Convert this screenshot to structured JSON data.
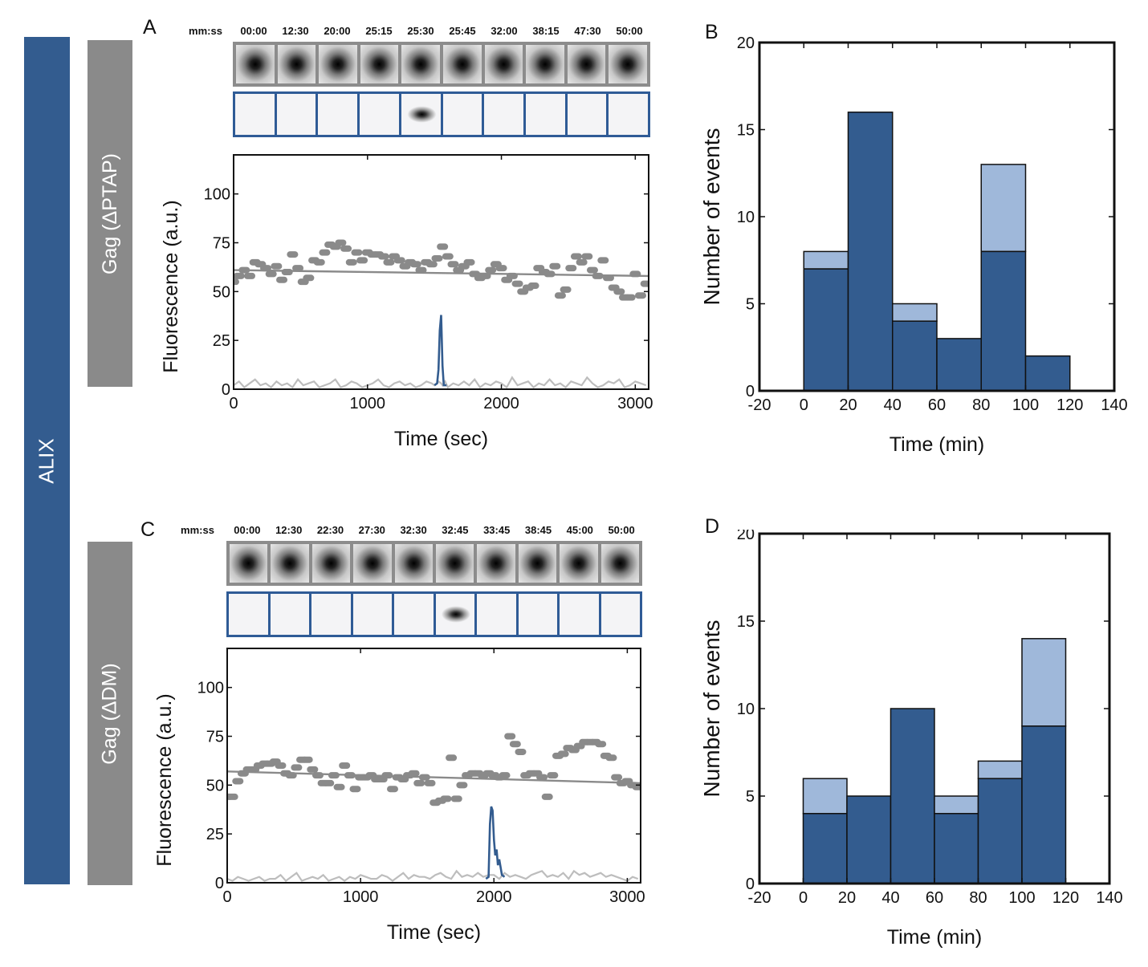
{
  "side_labels": {
    "alix": "ALIX",
    "gag_a": "Gag (ΔPTAP)",
    "gag_c": "Gag (ΔDM)"
  },
  "panel_letters": {
    "a": "A",
    "b": "B",
    "c": "C",
    "d": "D"
  },
  "colors": {
    "dark_blue": "#335c8f",
    "light_blue": "#9fb8da",
    "gray": "#8a8a8a",
    "trace_gray": "#bdbdbd"
  },
  "filmstrip_a": {
    "unit_label": "mm:ss",
    "times": [
      "00:00",
      "12:30",
      "20:00",
      "25:15",
      "25:30",
      "25:45",
      "32:00",
      "38:15",
      "47:30",
      "50:00"
    ],
    "alix_signal_frame": "25:30"
  },
  "filmstrip_c": {
    "unit_label": "mm:ss",
    "times": [
      "00:00",
      "12:30",
      "22:30",
      "27:30",
      "32:30",
      "32:45",
      "33:45",
      "38:45",
      "45:00",
      "50:00"
    ],
    "alix_signal_frame": "32:45"
  },
  "chart_data": [
    {
      "panel": "A",
      "type": "scatter",
      "xlabel": "Time (sec)",
      "ylabel": "Fluorescence (a.u.)",
      "xlim": [
        0,
        3100
      ],
      "ylim": [
        0,
        120
      ],
      "xticks": [
        0,
        1000,
        2000,
        3000
      ],
      "yticks": [
        0,
        25,
        50,
        75,
        100
      ],
      "series": [
        {
          "name": "Gag",
          "style": "dots",
          "color": "#8a8a8a",
          "x": [
            0,
            40,
            80,
            120,
            160,
            200,
            240,
            280,
            320,
            360,
            400,
            440,
            480,
            520,
            560,
            600,
            640,
            680,
            720,
            760,
            800,
            840,
            880,
            920,
            960,
            1000,
            1040,
            1080,
            1120,
            1160,
            1200,
            1240,
            1280,
            1320,
            1360,
            1400,
            1440,
            1480,
            1520,
            1560,
            1600,
            1640,
            1680,
            1720,
            1760,
            1800,
            1840,
            1880,
            1920,
            1960,
            2000,
            2040,
            2080,
            2120,
            2160,
            2200,
            2240,
            2280,
            2320,
            2360,
            2400,
            2440,
            2480,
            2520,
            2560,
            2600,
            2640,
            2680,
            2720,
            2760,
            2800,
            2840,
            2880,
            2920,
            2960,
            3000,
            3040,
            3080
          ],
          "y": [
            55,
            58,
            61,
            58,
            65,
            64,
            62,
            59,
            63,
            56,
            60,
            69,
            62,
            55,
            57,
            66,
            65,
            70,
            74,
            73,
            75,
            72,
            65,
            70,
            66,
            70,
            69,
            69,
            68,
            65,
            68,
            66,
            63,
            65,
            64,
            61,
            65,
            64,
            67,
            73,
            68,
            64,
            61,
            63,
            65,
            59,
            57,
            58,
            61,
            64,
            62,
            56,
            58,
            54,
            50,
            52,
            53,
            62,
            60,
            59,
            63,
            48,
            51,
            62,
            68,
            65,
            68,
            61,
            58,
            66,
            57,
            52,
            50,
            47,
            47,
            59,
            48,
            54
          ]
        },
        {
          "name": "Gag trend",
          "style": "line",
          "color": "#8a8a8a",
          "x": [
            0,
            3100
          ],
          "y": [
            61,
            58
          ]
        },
        {
          "name": "ALIX",
          "style": "trace",
          "color": "#bdbdbd",
          "x": [
            0,
            40,
            80,
            120,
            160,
            200,
            240,
            280,
            320,
            360,
            400,
            440,
            480,
            520,
            560,
            600,
            640,
            680,
            720,
            760,
            800,
            840,
            880,
            920,
            960,
            1000,
            1040,
            1080,
            1120,
            1160,
            1200,
            1240,
            1280,
            1320,
            1360,
            1400,
            1440,
            1480,
            1500,
            1520,
            1530,
            1550,
            1560,
            1580,
            1600,
            1640,
            1680,
            1720,
            1760,
            1800,
            1840,
            1880,
            1920,
            1960,
            2000,
            2040,
            2080,
            2120,
            2160,
            2200,
            2240,
            2280,
            2320,
            2360,
            2400,
            2440,
            2480,
            2520,
            2560,
            2600,
            2640,
            2680,
            2720,
            2760,
            2800,
            2840,
            2880,
            2920,
            2960,
            3000,
            3040,
            3080
          ],
          "y": [
            2,
            4,
            1,
            3,
            5,
            2,
            3,
            1,
            4,
            2,
            3,
            1,
            5,
            2,
            3,
            4,
            1,
            2,
            3,
            5,
            1,
            2,
            4,
            3,
            1,
            2,
            3,
            5,
            2,
            1,
            3,
            4,
            2,
            3,
            1,
            2,
            4,
            3,
            2,
            3,
            4,
            3,
            2,
            4,
            1,
            3,
            2,
            4,
            2,
            5,
            1,
            3,
            2,
            4,
            3,
            1,
            6,
            2,
            3,
            4,
            1,
            3,
            2,
            5,
            2,
            3,
            1,
            4,
            3,
            2,
            6,
            3,
            1,
            2,
            4,
            3,
            5,
            1,
            2,
            4,
            3,
            2
          ]
        },
        {
          "name": "ALIX burst",
          "style": "line",
          "color": "#335c8f",
          "x": [
            1500,
            1520,
            1530,
            1540,
            1550,
            1560,
            1570,
            1590
          ],
          "y": [
            2,
            3,
            10,
            30,
            38,
            12,
            2,
            2
          ]
        }
      ]
    },
    {
      "panel": "B",
      "type": "bar",
      "xlabel": "Time (min)",
      "ylabel": "Number of events",
      "xlim": [
        -20,
        140
      ],
      "ylim": [
        0,
        20
      ],
      "xticks": [
        -20,
        0,
        20,
        40,
        60,
        80,
        100,
        120,
        140
      ],
      "yticks": [
        0,
        5,
        10,
        15,
        20
      ],
      "bin_edges": [
        0,
        20,
        40,
        60,
        80,
        100,
        120
      ],
      "series": [
        {
          "name": "dark",
          "color": "#335c8f",
          "values": [
            7,
            16,
            4,
            3,
            8,
            2
          ]
        },
        {
          "name": "light",
          "color": "#9fb8da",
          "values": [
            1,
            0,
            1,
            0,
            5,
            0
          ]
        }
      ]
    },
    {
      "panel": "C",
      "type": "scatter",
      "xlabel": "Time (sec)",
      "ylabel": "Fluorescence (a.u.)",
      "xlim": [
        0,
        3100
      ],
      "ylim": [
        0,
        120
      ],
      "xticks": [
        0,
        1000,
        2000,
        3000
      ],
      "yticks": [
        0,
        25,
        50,
        75,
        100
      ],
      "series": [
        {
          "name": "Gag",
          "style": "dots",
          "color": "#8a8a8a",
          "x": [
            0,
            40,
            80,
            120,
            160,
            200,
            240,
            280,
            320,
            360,
            400,
            440,
            480,
            520,
            560,
            600,
            640,
            680,
            720,
            760,
            800,
            840,
            880,
            920,
            960,
            1000,
            1040,
            1080,
            1120,
            1160,
            1200,
            1240,
            1280,
            1320,
            1360,
            1400,
            1440,
            1480,
            1520,
            1560,
            1600,
            1640,
            1680,
            1720,
            1760,
            1800,
            1840,
            1880,
            1920,
            1960,
            2000,
            2040,
            2080,
            2120,
            2160,
            2200,
            2240,
            2280,
            2320,
            2360,
            2400,
            2440,
            2480,
            2520,
            2560,
            2600,
            2640,
            2680,
            2720,
            2760,
            2800,
            2840,
            2880,
            2920,
            2960,
            3000,
            3040,
            3080
          ],
          "y": [
            44,
            44,
            52,
            56,
            58,
            58,
            60,
            61,
            61,
            62,
            60,
            56,
            55,
            59,
            63,
            63,
            58,
            55,
            51,
            51,
            55,
            49,
            60,
            55,
            48,
            54,
            54,
            55,
            53,
            53,
            55,
            48,
            54,
            53,
            55,
            56,
            51,
            54,
            51,
            41,
            42,
            43,
            64,
            43,
            50,
            55,
            56,
            56,
            55,
            56,
            55,
            54,
            55,
            75,
            71,
            67,
            55,
            56,
            56,
            54,
            44,
            55,
            65,
            66,
            69,
            68,
            70,
            72,
            72,
            72,
            71,
            65,
            64,
            54,
            51,
            52,
            50,
            49
          ]
        },
        {
          "name": "Gag trend",
          "style": "line",
          "color": "#8a8a8a",
          "x": [
            0,
            3100
          ],
          "y": [
            57,
            51
          ]
        },
        {
          "name": "ALIX",
          "style": "trace",
          "color": "#bdbdbd",
          "x": [
            0,
            40,
            80,
            120,
            160,
            200,
            240,
            280,
            320,
            360,
            400,
            440,
            480,
            520,
            560,
            600,
            640,
            680,
            720,
            760,
            800,
            840,
            880,
            920,
            960,
            1000,
            1040,
            1080,
            1120,
            1160,
            1200,
            1240,
            1280,
            1320,
            1360,
            1400,
            1440,
            1480,
            1520,
            1560,
            1600,
            1640,
            1680,
            1720,
            1760,
            1800,
            1840,
            1880,
            1920,
            1960,
            2000,
            2040,
            2080,
            2120,
            2160,
            2200,
            2240,
            2280,
            2320,
            2360,
            2400,
            2440,
            2480,
            2520,
            2560,
            2600,
            2640,
            2680,
            2720,
            2760,
            2800,
            2840,
            2880,
            2920,
            2960,
            3000,
            3040,
            3080
          ],
          "y": [
            2,
            1,
            3,
            2,
            1,
            2,
            3,
            1,
            2,
            2,
            4,
            1,
            3,
            5,
            1,
            2,
            3,
            2,
            4,
            1,
            2,
            3,
            1,
            3,
            2,
            4,
            3,
            2,
            2,
            4,
            3,
            1,
            3,
            5,
            2,
            4,
            3,
            3,
            2,
            4,
            5,
            3,
            2,
            6,
            3,
            4,
            3,
            5,
            3,
            4,
            4,
            2,
            5,
            3,
            4,
            3,
            2,
            4,
            5,
            6,
            3,
            4,
            3,
            5,
            2,
            6,
            4,
            5,
            3,
            4,
            5,
            3,
            4,
            3,
            2,
            1,
            3,
            2
          ]
        },
        {
          "name": "ALIX burst",
          "style": "line",
          "color": "#335c8f",
          "x": [
            1940,
            1960,
            1970,
            1980,
            1990,
            2000,
            2010,
            2020,
            2030,
            2040,
            2060,
            2080
          ],
          "y": [
            2,
            3,
            30,
            39,
            37,
            22,
            14,
            17,
            9,
            12,
            4,
            3
          ]
        }
      ]
    },
    {
      "panel": "D",
      "type": "bar",
      "xlabel": "Time (min)",
      "ylabel": "Number of events",
      "xlim": [
        -20,
        140
      ],
      "ylim": [
        0,
        20
      ],
      "xticks": [
        -20,
        0,
        20,
        40,
        60,
        80,
        100,
        120,
        140
      ],
      "yticks": [
        0,
        5,
        10,
        15,
        20
      ],
      "bin_edges": [
        0,
        20,
        40,
        60,
        80,
        100,
        120
      ],
      "series": [
        {
          "name": "dark",
          "color": "#335c8f",
          "values": [
            4,
            5,
            10,
            4,
            6,
            9
          ]
        },
        {
          "name": "light",
          "color": "#9fb8da",
          "values": [
            2,
            0,
            0,
            1,
            1,
            5
          ]
        }
      ]
    }
  ]
}
